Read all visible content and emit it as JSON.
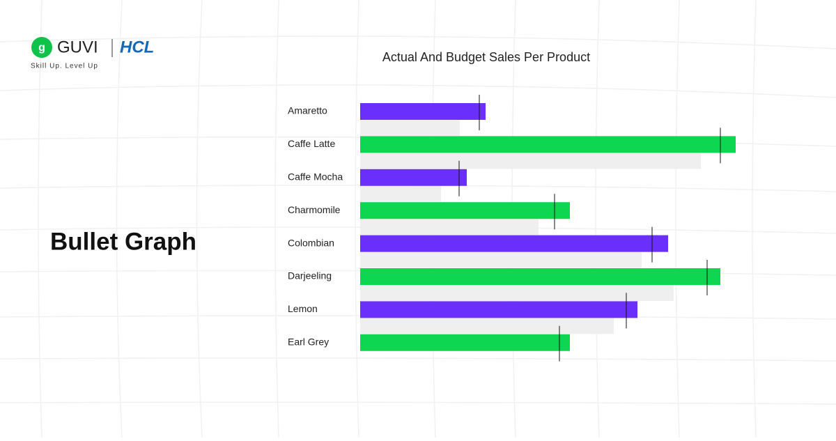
{
  "brand": {
    "name": "GUVI",
    "partner": "HCL",
    "tagline": "Skill Up. Level Up"
  },
  "heading": "Bullet Graph",
  "chart_data": {
    "type": "bullet",
    "title": "Actual And Budget Sales Per Product",
    "categories": [
      "Amaretto",
      "Caffe Latte",
      "Caffe Mocha",
      "Charmomile",
      "Colombian",
      "Darjeeling",
      "Lemon",
      "Earl Grey"
    ],
    "values": [
      180,
      539,
      153,
      301,
      442,
      517,
      398,
      301
    ],
    "targets": [
      171,
      517,
      142,
      279,
      419,
      498,
      382,
      286
    ],
    "ranges": [
      143,
      489,
      116,
      256,
      404,
      450,
      364,
      null
    ],
    "colors": [
      "#6a2ffa",
      "#0fd650",
      "#6a2ffa",
      "#0fd650",
      "#6a2ffa",
      "#0fd650",
      "#6a2ffa",
      "#0fd650"
    ],
    "range_color": "#efefef",
    "xlim": [
      0,
      560
    ]
  }
}
